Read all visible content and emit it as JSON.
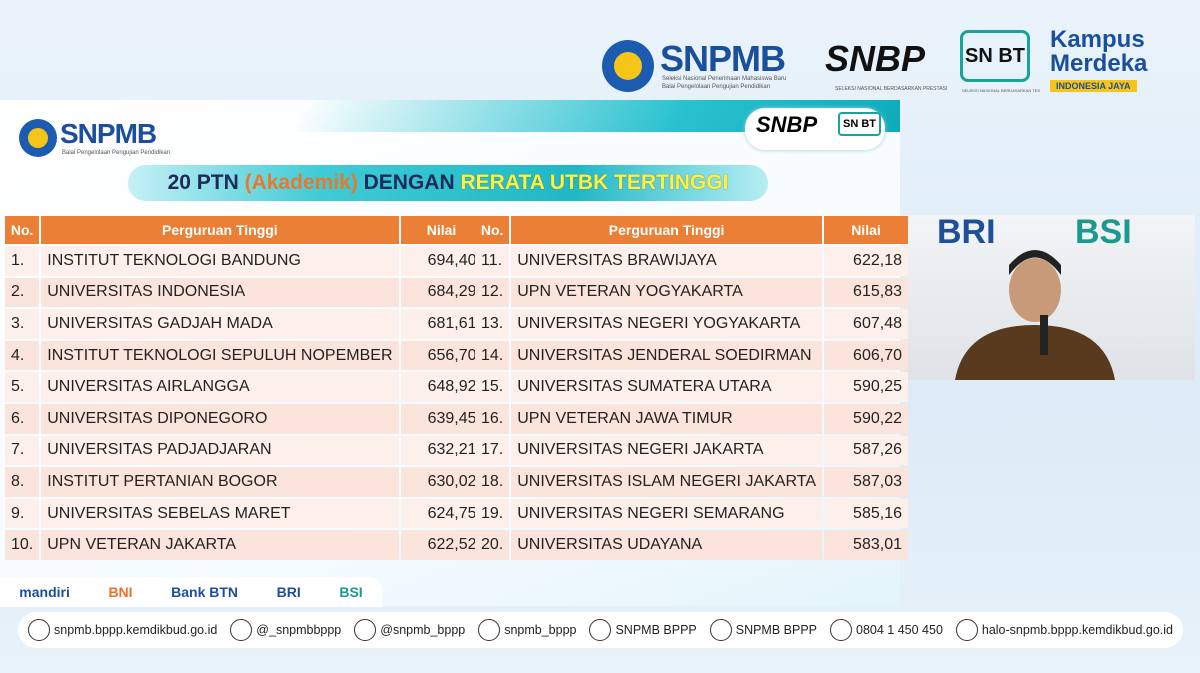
{
  "header": {
    "snpmb": {
      "name": "SNPMB",
      "sub": "Seleksi Nasional Penerimaan Mahasiswa Baru",
      "org": "Balai Pengelolaan Pengujian Pendidikan"
    },
    "snbp": {
      "name": "SNBP",
      "sub": "SELEKSI NASIONAL BERDASARKAN PRESTASI"
    },
    "snbt": {
      "name": "SN BT",
      "sub": "SELEKSI NASIONAL BERDASARKAN TES"
    },
    "kampus": {
      "name": "Kampus Merdeka",
      "tag": "INDONESIA JAYA"
    }
  },
  "slide": {
    "brand": "SNPMB",
    "brand_sub": "Balai Pengelolaan Pengujian Pendidikan",
    "snbp": "SNBP",
    "snbt": "SN BT",
    "title_parts": [
      "20 PTN ",
      "(Akademik)",
      " DENGAN ",
      "RERATA UTBK TERTINGGI"
    ],
    "tables": [
      {
        "columns": [
          "No.",
          "Perguruan Tinggi",
          "Nilai"
        ],
        "rows": [
          [
            "1.",
            "INSTITUT TEKNOLOGI BANDUNG",
            "694,40"
          ],
          [
            "2.",
            "UNIVERSITAS INDONESIA",
            "684,29"
          ],
          [
            "3.",
            "UNIVERSITAS GADJAH MADA",
            "681,61"
          ],
          [
            "4.",
            "INSTITUT TEKNOLOGI SEPULUH NOPEMBER",
            "656,70"
          ],
          [
            "5.",
            "UNIVERSITAS AIRLANGGA",
            "648,92"
          ],
          [
            "6.",
            "UNIVERSITAS DIPONEGORO",
            "639,45"
          ],
          [
            "7.",
            "UNIVERSITAS PADJADJARAN",
            "632,21"
          ],
          [
            "8.",
            "INSTITUT PERTANIAN BOGOR",
            "630,02"
          ],
          [
            "9.",
            "UNIVERSITAS SEBELAS MARET",
            "624,75"
          ],
          [
            "10.",
            "UPN VETERAN JAKARTA",
            "622,52"
          ]
        ]
      },
      {
        "columns": [
          "No.",
          "Perguruan Tinggi",
          "Nilai"
        ],
        "rows": [
          [
            "11.",
            "UNIVERSITAS BRAWIJAYA",
            "622,18"
          ],
          [
            "12.",
            "UPN VETERAN YOGYAKARTA",
            "615,83"
          ],
          [
            "13.",
            "UNIVERSITAS NEGERI YOGYAKARTA",
            "607,48"
          ],
          [
            "14.",
            "UNIVERSITAS JENDERAL SOEDIRMAN",
            "606,70"
          ],
          [
            "15.",
            "UNIVERSITAS SUMATERA UTARA",
            "590,25"
          ],
          [
            "16.",
            "UPN VETERAN JAWA TIMUR",
            "590,22"
          ],
          [
            "17.",
            "UNIVERSITAS NEGERI JAKARTA",
            "587,26"
          ],
          [
            "18.",
            "UNIVERSITAS ISLAM NEGERI JAKARTA",
            "587,03"
          ],
          [
            "19.",
            "UNIVERSITAS NEGERI SEMARANG",
            "585,16"
          ],
          [
            "20.",
            "UNIVERSITAS UDAYANA",
            "583,01"
          ]
        ]
      }
    ],
    "sponsors": [
      "mandiri",
      "BNI",
      "Bank BTN",
      "BRI",
      "BSI"
    ]
  },
  "video": {
    "banner": [
      "BRI",
      "BSI"
    ]
  },
  "footer": {
    "contacts": [
      "snpmb.bppp.kemdikbud.go.id",
      "@_snpmbbppp",
      "@snpmb_bppp",
      "snpmb_bppp",
      "SNPMB BPPP",
      "SNPMB BPPP",
      "0804 1 450 450",
      "halo-snpmb.bppp.kemdikbud.go.id"
    ]
  }
}
